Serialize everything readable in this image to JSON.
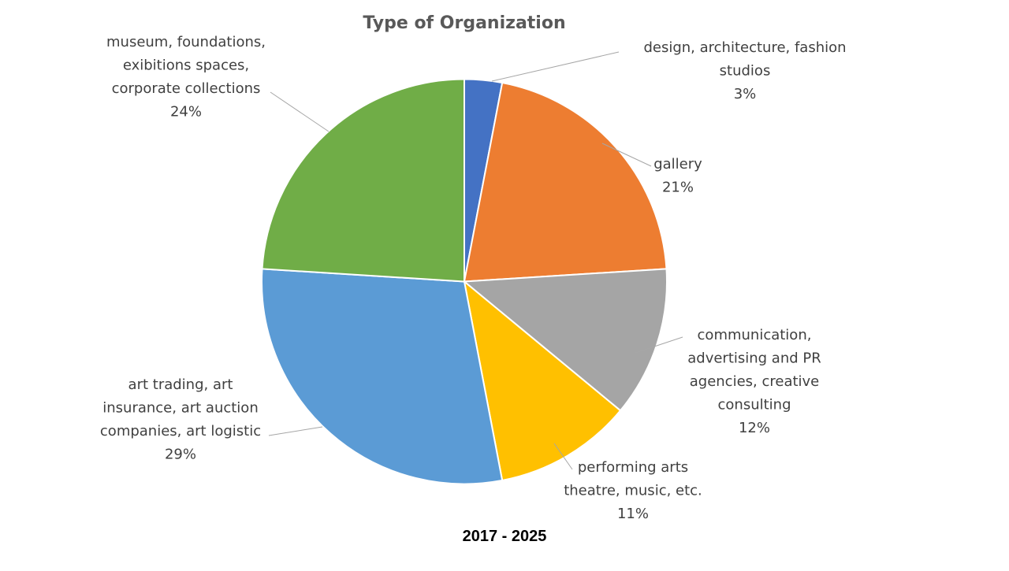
{
  "chart_data": {
    "type": "pie",
    "title": "Type of Organization",
    "subtitle": "2017 - 2025",
    "slices": [
      {
        "name": "design, architecture, fashion studios",
        "label_lines": [
          "design, architecture, fashion",
          "studios"
        ],
        "value": 3,
        "percent_label": "3%",
        "color": "#4472C4"
      },
      {
        "name": "gallery",
        "label_lines": [
          "gallery"
        ],
        "value": 21,
        "percent_label": "21%",
        "color": "#ED7D31"
      },
      {
        "name": "communication, advertising and PR agencies, creative consulting",
        "label_lines": [
          "communication,",
          "advertising and PR",
          "agencies, creative",
          "consulting"
        ],
        "value": 12,
        "percent_label": "12%",
        "color": "#A5A5A5"
      },
      {
        "name": "performing arts theatre, music, etc.",
        "label_lines": [
          "performing arts",
          "theatre, music, etc."
        ],
        "value": 11,
        "percent_label": "11%",
        "color": "#FFC000"
      },
      {
        "name": "art trading, art insurance, art auction companies, art logistic",
        "label_lines": [
          "art trading, art",
          "insurance, art auction",
          "companies, art logistic"
        ],
        "value": 29,
        "percent_label": "29%",
        "color": "#5B9BD5"
      },
      {
        "name": "museum, foundations, exibitions spaces, corporate collections",
        "label_lines": [
          "museum, foundations,",
          "exibitions spaces,",
          "corporate collections"
        ],
        "value": 24,
        "percent_label": "24%",
        "color": "#70AD47"
      }
    ]
  }
}
